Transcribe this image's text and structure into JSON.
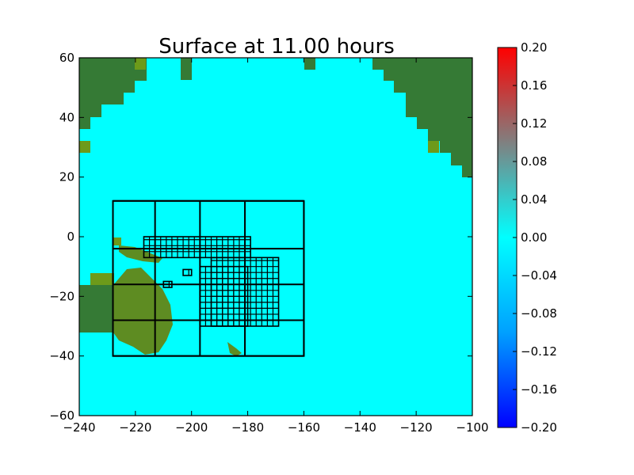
{
  "chart_data": {
    "type": "heatmap",
    "title": "Surface at 11.00 hours",
    "xlabel": "",
    "ylabel": "",
    "xlim": [
      -240,
      -100
    ],
    "ylim": [
      -60,
      60
    ],
    "xticks": [
      -240,
      -220,
      -200,
      -180,
      -160,
      -140,
      -120,
      -100
    ],
    "yticks": [
      -60,
      -40,
      -20,
      0,
      20,
      40,
      60
    ],
    "xtick_labels": [
      "−240",
      "−220",
      "−200",
      "−180",
      "−160",
      "−140",
      "−120",
      "−100"
    ],
    "ytick_labels": [
      "−60",
      "−40",
      "−20",
      "0",
      "20",
      "40",
      "60"
    ],
    "colorbar": {
      "vmin": -0.2,
      "vmax": 0.2,
      "ticks": [
        0.2,
        0.16,
        0.12,
        0.08,
        0.04,
        0.0,
        -0.04,
        -0.08,
        -0.12,
        -0.16,
        -0.2
      ],
      "tick_labels": [
        "0.20",
        "0.16",
        "0.12",
        "0.08",
        "0.04",
        "0.00",
        "−0.04",
        "−0.08",
        "−0.12",
        "−0.16",
        "−0.20"
      ],
      "colors": [
        "#0000ff",
        "#00a0ff",
        "#00ffff",
        "#808080",
        "#ff0000"
      ]
    },
    "field_value_typical": 0.0,
    "colors": {
      "water": "#00ffff",
      "land": "#357a35",
      "land_light": "#6d9a1a",
      "grid_line": "#000000"
    },
    "amr_level1_box": {
      "x": [
        -228,
        -160
      ],
      "y": [
        -40,
        12
      ]
    },
    "amr_level2_grid": {
      "x": [
        -228,
        -213,
        -197,
        -181,
        -160
      ],
      "y": [
        12,
        -4,
        -16,
        -28,
        -40
      ]
    },
    "amr_level3_patches": [
      {
        "x": [
          -217,
          -179
        ],
        "y": [
          -7,
          0
        ]
      },
      {
        "x": [
          -193,
          -169
        ],
        "y": [
          -30,
          -7
        ]
      },
      {
        "x": [
          -197,
          -180
        ],
        "y": [
          -30,
          -10
        ]
      },
      {
        "x": [
          -210,
          -207
        ],
        "y": [
          -17,
          -15
        ]
      },
      {
        "x": [
          -203,
          -200
        ],
        "y": [
          -13,
          -11
        ]
      }
    ]
  }
}
